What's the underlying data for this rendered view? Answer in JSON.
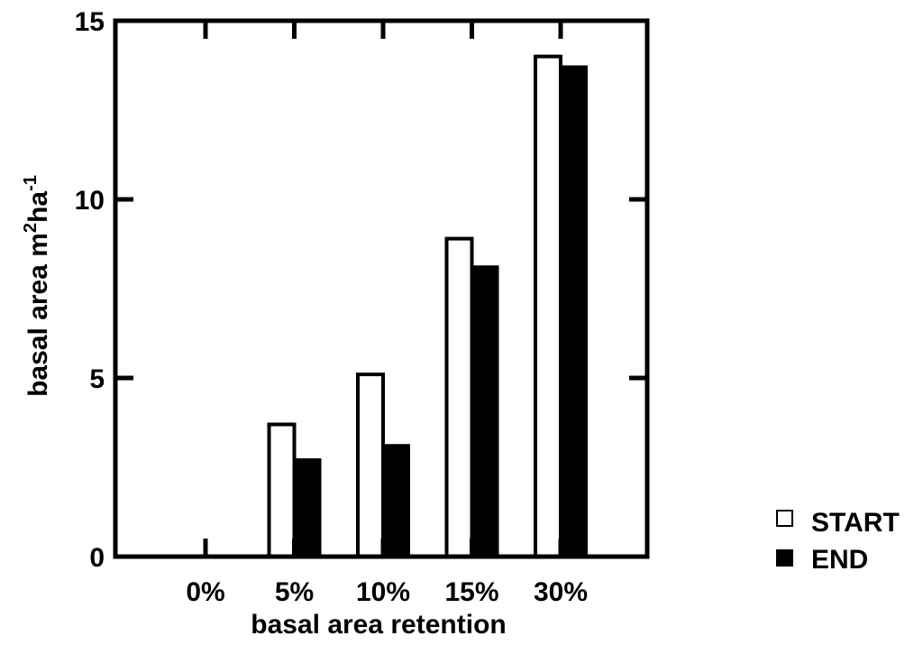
{
  "chart_data": {
    "type": "bar",
    "categories": [
      "0%",
      "5%",
      "10%",
      "15%",
      "30%"
    ],
    "series": [
      {
        "name": "START",
        "values": [
          0,
          3.7,
          5.1,
          8.9,
          14.0
        ],
        "color": "#ffffff",
        "stroke": "#000000"
      },
      {
        "name": "END",
        "values": [
          0,
          2.7,
          3.1,
          8.1,
          13.7
        ],
        "color": "#000000",
        "stroke": "#000000"
      }
    ],
    "xlabel": "basal area retention",
    "ylabel": {
      "base": "basal area m",
      "sup1": "2",
      "mid": "ha",
      "sup2": "-1"
    },
    "ylim": [
      0,
      15
    ],
    "yticks": [
      0,
      5,
      10,
      15
    ],
    "legend_position": "bottom-right, outside plot",
    "grid": false
  }
}
